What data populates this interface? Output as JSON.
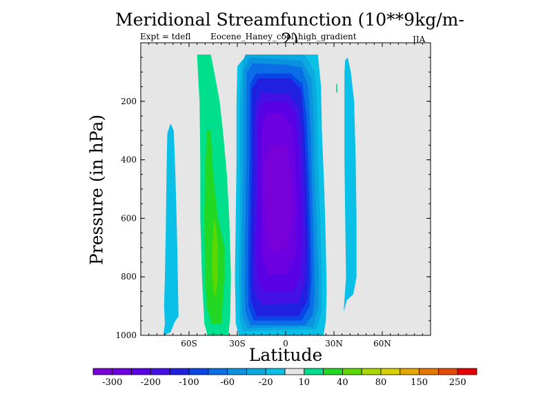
{
  "title": "Meridional Streamfunction (10**9kg/m-2)",
  "experiment_label": "Expt = tdefl",
  "case_label": "Eocene_Haney_cool_high_gradient",
  "season_label": "JJA",
  "chart_data": {
    "type": "contour",
    "title": "Meridional Streamfunction (10**9kg/m-2)",
    "xlabel": "Latitude",
    "ylabel": "Pressure (in hPa)",
    "xlim": [
      -90,
      90
    ],
    "ylim": [
      1000,
      0
    ],
    "y_reversed": true,
    "x_ticks": [
      {
        "value": -60,
        "label": "60S"
      },
      {
        "value": -30,
        "label": "30S"
      },
      {
        "value": 0,
        "label": "0"
      },
      {
        "value": 30,
        "label": "30N"
      },
      {
        "value": 60,
        "label": "60N"
      }
    ],
    "y_ticks": [
      {
        "value": 200,
        "label": "200"
      },
      {
        "value": 400,
        "label": "400"
      },
      {
        "value": 600,
        "label": "600"
      },
      {
        "value": 800,
        "label": "800"
      },
      {
        "value": 1000,
        "label": "1000"
      }
    ],
    "background_color": "#e6e6e6",
    "colorbar": {
      "colors": [
        "#7800d8",
        "#6c00e0",
        "#5a00e6",
        "#4410e6",
        "#2020e0",
        "#0a46e6",
        "#0a6ee6",
        "#0a92e0",
        "#0aaae0",
        "#0ac0e6",
        "#e6e6e6",
        "#00e08c",
        "#22d822",
        "#5ad800",
        "#a8d800",
        "#d8d000",
        "#e6a800",
        "#e67800",
        "#e64800",
        "#e60000"
      ],
      "labels": [
        "-300",
        "-200",
        "-100",
        "-60",
        "-20",
        "10",
        "40",
        "80",
        "150",
        "250"
      ]
    },
    "filled_regions": [
      {
        "name": "southern-cyan-cell",
        "value": -20,
        "color": "#0ac0e6",
        "points": [
          [
            -76,
            1000
          ],
          [
            -75,
            960
          ],
          [
            -75.5,
            900
          ],
          [
            -75,
            800
          ],
          [
            -74.5,
            650
          ],
          [
            -74,
            450
          ],
          [
            -73.5,
            310
          ],
          [
            -71.5,
            275
          ],
          [
            -69.5,
            300
          ],
          [
            -68.5,
            450
          ],
          [
            -67.5,
            650
          ],
          [
            -67,
            800
          ],
          [
            -66.5,
            935
          ],
          [
            -69,
            955
          ],
          [
            -71.5,
            990
          ]
        ]
      },
      {
        "name": "south-midlatitude-green-band",
        "value": 10,
        "color": "#00e08c",
        "points": [
          [
            -55,
            40
          ],
          [
            -46.5,
            40
          ],
          [
            -44,
            110
          ],
          [
            -41,
            200
          ],
          [
            -39,
            300
          ],
          [
            -36.5,
            450
          ],
          [
            -35,
            600
          ],
          [
            -34,
            800
          ],
          [
            -34.5,
            940
          ],
          [
            -35.5,
            1000
          ],
          [
            -48.5,
            1000
          ],
          [
            -50.5,
            960
          ],
          [
            -52,
            800
          ],
          [
            -53,
            600
          ],
          [
            -53,
            400
          ],
          [
            -53.5,
            200
          ],
          [
            -54.5,
            100
          ]
        ]
      },
      {
        "name": "south-midlatitude-bright-green",
        "value": 40,
        "color": "#22d822",
        "points": [
          [
            -49,
            300
          ],
          [
            -46.5,
            300
          ],
          [
            -45,
            450
          ],
          [
            -42,
            600
          ],
          [
            -38,
            700
          ],
          [
            -38,
            800
          ],
          [
            -39,
            880
          ],
          [
            -40,
            960
          ],
          [
            -46,
            960
          ],
          [
            -49,
            900
          ],
          [
            -50,
            800
          ],
          [
            -50.5,
            600
          ],
          [
            -50,
            450
          ]
        ]
      },
      {
        "name": "south-midlatitude-yellow-green",
        "value": 80,
        "color": "#5ad800",
        "points": [
          [
            -44.5,
            600
          ],
          [
            -43,
            640
          ],
          [
            -42,
            700
          ],
          [
            -42,
            800
          ],
          [
            -43,
            850
          ],
          [
            -44.5,
            870
          ],
          [
            -45.5,
            800
          ],
          [
            -45.5,
            700
          ]
        ]
      },
      {
        "name": "tropical-cell-outer-cyan",
        "value": -20,
        "color": "#0ac0e6",
        "points": [
          [
            -30,
            80
          ],
          [
            -27,
            60
          ],
          [
            -23,
            40
          ],
          [
            20,
            40
          ],
          [
            22,
            150
          ],
          [
            22.5,
            300
          ],
          [
            24,
            500
          ],
          [
            25,
            700
          ],
          [
            25.5,
            850
          ],
          [
            25,
            950
          ],
          [
            23.5,
            1000
          ],
          [
            -29,
            1000
          ],
          [
            -31,
            960
          ],
          [
            -31.5,
            800
          ],
          [
            -31,
            600
          ],
          [
            -30.5,
            400
          ],
          [
            -30.5,
            200
          ]
        ]
      },
      {
        "name": "tropical-cell-level-aa",
        "value": -60,
        "color": "#0aaae0",
        "points": [
          [
            -27,
            70
          ],
          [
            -25,
            40
          ],
          [
            12,
            40
          ],
          [
            18,
            100
          ],
          [
            19.5,
            200
          ],
          [
            20,
            400
          ],
          [
            21.5,
            600
          ],
          [
            22.5,
            800
          ],
          [
            22.5,
            920
          ],
          [
            19,
            980
          ],
          [
            -26.5,
            985
          ],
          [
            -28.5,
            950
          ],
          [
            -29,
            800
          ],
          [
            -28.5,
            600
          ],
          [
            -28.5,
            400
          ],
          [
            -28.5,
            200
          ]
        ]
      },
      {
        "name": "tropical-cell-level-92",
        "value": -60,
        "color": "#0a92e0",
        "points": [
          [
            -26,
            90
          ],
          [
            -22.5,
            50
          ],
          [
            -5,
            55
          ],
          [
            10,
            60
          ],
          [
            16,
            120
          ],
          [
            17.5,
            250
          ],
          [
            18,
            450
          ],
          [
            19.5,
            650
          ],
          [
            20.5,
            800
          ],
          [
            20.5,
            900
          ],
          [
            17,
            970
          ],
          [
            -24,
            975
          ],
          [
            -27,
            930
          ],
          [
            -27.5,
            800
          ],
          [
            -27,
            600
          ],
          [
            -26.5,
            400
          ],
          [
            -26.5,
            200
          ]
        ]
      },
      {
        "name": "tropical-cell-level-6e",
        "value": -100,
        "color": "#0a6ee6",
        "points": [
          [
            -24,
            100
          ],
          [
            -20.5,
            70
          ],
          [
            0,
            75
          ],
          [
            10,
            85
          ],
          [
            14,
            150
          ],
          [
            15.5,
            300
          ],
          [
            16.5,
            500
          ],
          [
            17.5,
            700
          ],
          [
            18,
            850
          ],
          [
            17,
            930
          ],
          [
            12,
            965
          ],
          [
            -22,
            965
          ],
          [
            -25,
            920
          ],
          [
            -25.5,
            800
          ],
          [
            -25,
            600
          ],
          [
            -24.5,
            400
          ],
          [
            -24.5,
            200
          ]
        ]
      },
      {
        "name": "tropical-cell-level-46",
        "value": -100,
        "color": "#0a46e6",
        "points": [
          [
            -22,
            140
          ],
          [
            -18.5,
            105
          ],
          [
            3,
            105
          ],
          [
            10.5,
            140
          ],
          [
            13,
            250
          ],
          [
            14.5,
            450
          ],
          [
            15.5,
            650
          ],
          [
            16,
            800
          ],
          [
            15,
            900
          ],
          [
            10,
            950
          ],
          [
            -20,
            950
          ],
          [
            -23,
            900
          ],
          [
            -23.5,
            800
          ],
          [
            -23,
            600
          ],
          [
            -22.5,
            400
          ],
          [
            -22.5,
            250
          ]
        ]
      },
      {
        "name": "tropical-cell-level-20",
        "value": -200,
        "color": "#2020e0",
        "points": [
          [
            -21,
            160
          ],
          [
            -17,
            122
          ],
          [
            3,
            122
          ],
          [
            9.5,
            160
          ],
          [
            11.5,
            280
          ],
          [
            13,
            450
          ],
          [
            14,
            650
          ],
          [
            14.5,
            800
          ],
          [
            13.5,
            880
          ],
          [
            8,
            935
          ],
          [
            -18,
            935
          ],
          [
            -21.5,
            880
          ],
          [
            -22,
            800
          ],
          [
            -21.5,
            600
          ],
          [
            -21,
            400
          ],
          [
            -21,
            260
          ]
        ]
      },
      {
        "name": "tropical-cell-level-44",
        "value": -200,
        "color": "#4410e6",
        "points": [
          [
            -18.5,
            220
          ],
          [
            -15.5,
            170
          ],
          [
            2,
            175
          ],
          [
            8,
            220
          ],
          [
            10,
            320
          ],
          [
            11.5,
            500
          ],
          [
            12.5,
            700
          ],
          [
            12,
            820
          ],
          [
            8,
            890
          ],
          [
            -15,
            895
          ],
          [
            -19.5,
            850
          ],
          [
            -20,
            750
          ],
          [
            -19.5,
            600
          ],
          [
            -19,
            400
          ],
          [
            -19,
            300
          ]
        ]
      },
      {
        "name": "tropical-cell-level-5a",
        "value": -300,
        "color": "#5a00e6",
        "points": [
          [
            -17,
            250
          ],
          [
            -14,
            200
          ],
          [
            0,
            200
          ],
          [
            6,
            240
          ],
          [
            8,
            350
          ],
          [
            9.5,
            550
          ],
          [
            10,
            700
          ],
          [
            9,
            800
          ],
          [
            5,
            850
          ],
          [
            -14,
            850
          ],
          [
            -17.5,
            800
          ],
          [
            -18,
            700
          ],
          [
            -17.5,
            550
          ],
          [
            -17,
            400
          ]
        ]
      },
      {
        "name": "tropical-cell-level-6c",
        "value": -300,
        "color": "#6c00e0",
        "points": [
          [
            -15,
            300
          ],
          [
            -12,
            240
          ],
          [
            -2,
            240
          ],
          [
            4,
            290
          ],
          [
            6,
            400
          ],
          [
            7,
            600
          ],
          [
            6,
            720
          ],
          [
            1,
            790
          ],
          [
            -11,
            790
          ],
          [
            -14.5,
            730
          ],
          [
            -15,
            600
          ],
          [
            -15,
            450
          ]
        ]
      },
      {
        "name": "tropical-cell-core",
        "value": -300,
        "color": "#7800d8",
        "points": [
          [
            -13,
            400
          ],
          [
            -9,
            350
          ],
          [
            0,
            350
          ],
          [
            3.5,
            450
          ],
          [
            4,
            600
          ],
          [
            2,
            680
          ],
          [
            -4,
            720
          ],
          [
            -10,
            700
          ],
          [
            -12.5,
            600
          ],
          [
            -13,
            500
          ]
        ]
      },
      {
        "name": "northern-cyan-cell",
        "value": -20,
        "color": "#0ac0e6",
        "points": [
          [
            36,
            920
          ],
          [
            37.5,
            800
          ],
          [
            37,
            600
          ],
          [
            36.5,
            400
          ],
          [
            36.5,
            200
          ],
          [
            36.5,
            100
          ],
          [
            37,
            60
          ],
          [
            38.5,
            50
          ],
          [
            40.5,
            100
          ],
          [
            42.5,
            200
          ],
          [
            43.5,
            400
          ],
          [
            44,
            600
          ],
          [
            44,
            800
          ],
          [
            42,
            860
          ],
          [
            38,
            880
          ]
        ]
      },
      {
        "name": "northern-small-green-speck",
        "value": 10,
        "color": "#00e08c",
        "points": [
          [
            31.3,
            140
          ],
          [
            32,
            140
          ],
          [
            32,
            170
          ],
          [
            31.3,
            170
          ]
        ]
      }
    ]
  }
}
